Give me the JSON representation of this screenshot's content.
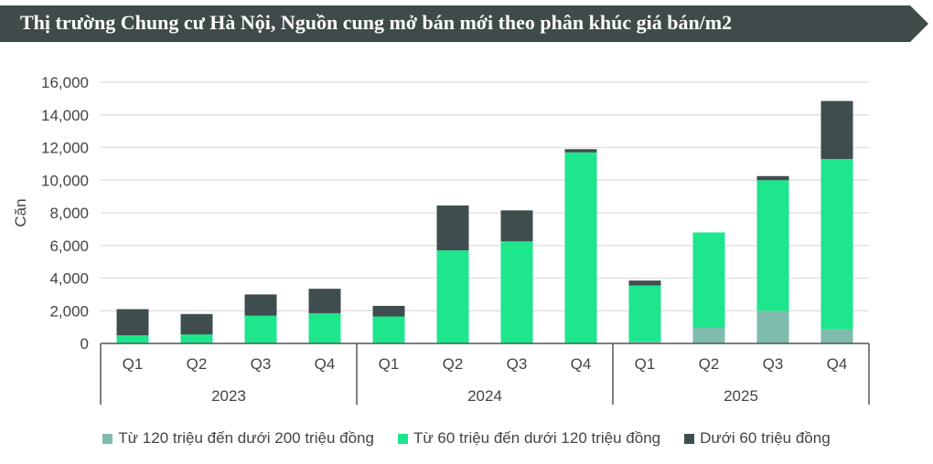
{
  "chart_data": {
    "type": "bar",
    "stacked": true,
    "title": "Thị trường Chung cư Hà Nội, Nguồn cung mở bán mới theo phân khúc giá bán/m2",
    "ylabel": "Căn",
    "xlabel": "",
    "ylim": [
      0,
      16000
    ],
    "yticks": [
      "0",
      "2,000",
      "4,000",
      "6,000",
      "8,000",
      "10,000",
      "12,000",
      "14,000",
      "16,000"
    ],
    "ytick_values": [
      0,
      2000,
      4000,
      6000,
      8000,
      10000,
      12000,
      14000,
      16000
    ],
    "grid": true,
    "legend_position": "bottom",
    "categories": [
      "Q1",
      "Q2",
      "Q3",
      "Q4",
      "Q1",
      "Q2",
      "Q3",
      "Q4",
      "Q1",
      "Q2",
      "Q3",
      "Q4"
    ],
    "groups": [
      {
        "label": "2023",
        "size": 4
      },
      {
        "label": "2024",
        "size": 4
      },
      {
        "label": "2025",
        "size": 4
      }
    ],
    "series": [
      {
        "name": "Từ 120 triệu đến dưới 200 triệu đồng",
        "color": "#7fbcad",
        "values": [
          0,
          0,
          0,
          0,
          0,
          0,
          0,
          0,
          100,
          950,
          2000,
          850
        ]
      },
      {
        "name": "Từ 60 triệu đến dưới 120 triệu đồng",
        "color": "#1de68c",
        "values": [
          500,
          550,
          1700,
          1850,
          1650,
          5700,
          6250,
          11700,
          3450,
          5850,
          8000,
          10450
        ]
      },
      {
        "name": "Dưới 60 triệu đồng",
        "color": "#404d4e",
        "values": [
          1600,
          1250,
          1300,
          1500,
          650,
          2750,
          1900,
          200,
          300,
          0,
          250,
          3550
        ]
      }
    ]
  },
  "colors": {
    "banner": "#3f4b4b",
    "grid": "#e2e2e2",
    "axis": "#555555"
  }
}
